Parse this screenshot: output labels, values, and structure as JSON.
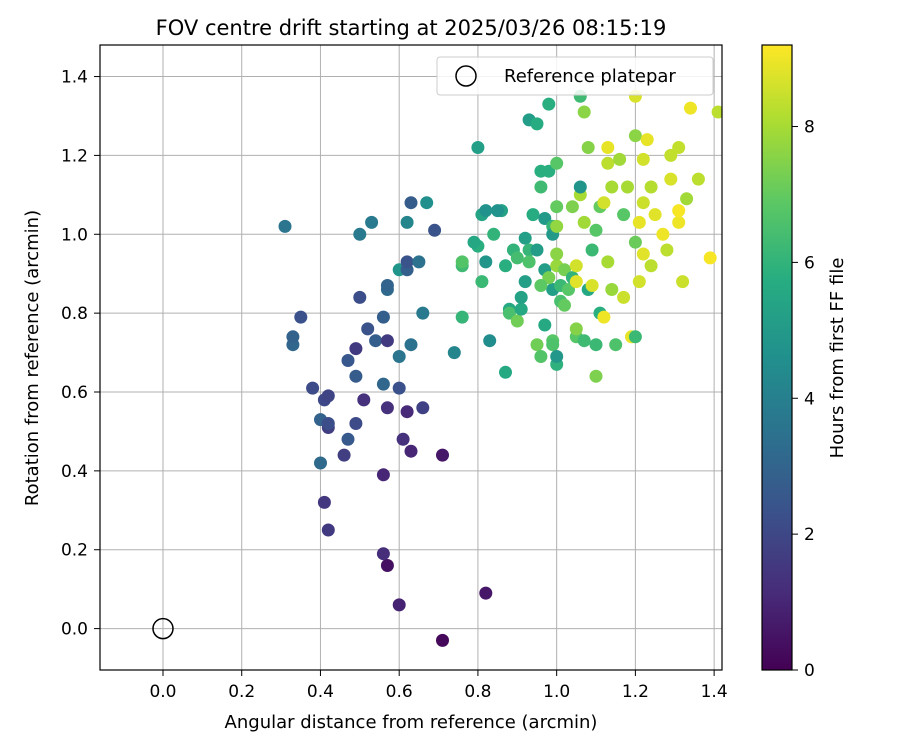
{
  "chart_data": {
    "type": "scatter",
    "title": "FOV centre drift starting at 2025/03/26 08:15:19",
    "xlabel": "Angular distance from reference (arcmin)",
    "ylabel": "Rotation from reference (arcmin)",
    "xlim": [
      -0.16,
      1.42
    ],
    "ylim": [
      -0.105,
      1.48
    ],
    "xticks": [
      0.0,
      0.2,
      0.4,
      0.6,
      0.8,
      1.0,
      1.2,
      1.4
    ],
    "xtick_labels": [
      "0.0",
      "0.2",
      "0.4",
      "0.6",
      "0.8",
      "1.0",
      "1.2",
      "1.4"
    ],
    "yticks": [
      0.0,
      0.2,
      0.4,
      0.6,
      0.8,
      1.0,
      1.2,
      1.4
    ],
    "ytick_labels": [
      "0.0",
      "0.2",
      "0.4",
      "0.6",
      "0.8",
      "1.0",
      "1.2",
      "1.4"
    ],
    "grid": true,
    "colormap": "viridis",
    "colorbar": {
      "label": "Hours from first FF file",
      "range": [
        0,
        9.2
      ],
      "ticks": [
        0,
        2,
        4,
        6,
        8
      ],
      "tick_labels": [
        "0",
        "2",
        "4",
        "6",
        "8"
      ]
    },
    "legend": {
      "position": "top-right",
      "entries": [
        {
          "label": "Reference platepar",
          "marker": "open-circle"
        }
      ]
    },
    "reference_point": {
      "x": 0.0,
      "y": 0.0
    },
    "points": [
      [
        0.71,
        -0.03,
        0.2
      ],
      [
        0.6,
        0.06,
        0.9
      ],
      [
        0.57,
        0.16,
        0.4
      ],
      [
        0.56,
        0.19,
        1.2
      ],
      [
        0.82,
        0.09,
        0.6
      ],
      [
        0.42,
        0.25,
        1.6
      ],
      [
        0.41,
        0.32,
        1.5
      ],
      [
        0.56,
        0.39,
        1.0
      ],
      [
        0.71,
        0.44,
        0.6
      ],
      [
        0.63,
        0.45,
        1.0
      ],
      [
        0.61,
        0.48,
        1.3
      ],
      [
        0.46,
        0.44,
        1.7
      ],
      [
        0.47,
        0.48,
        2.6
      ],
      [
        0.49,
        0.52,
        2.1
      ],
      [
        0.4,
        0.53,
        2.9
      ],
      [
        0.42,
        0.51,
        1.7
      ],
      [
        0.42,
        0.52,
        2.2
      ],
      [
        0.62,
        0.55,
        1.1
      ],
      [
        0.66,
        0.56,
        1.8
      ],
      [
        0.57,
        0.56,
        1.3
      ],
      [
        0.51,
        0.58,
        1.3
      ],
      [
        0.41,
        0.58,
        2.0
      ],
      [
        0.42,
        0.59,
        1.9
      ],
      [
        0.38,
        0.61,
        2.1
      ],
      [
        0.4,
        0.42,
        3.2
      ],
      [
        0.6,
        0.61,
        2.3
      ],
      [
        0.56,
        0.62,
        3.1
      ],
      [
        0.49,
        0.64,
        2.7
      ],
      [
        0.49,
        0.71,
        1.6
      ],
      [
        0.47,
        0.68,
        2.5
      ],
      [
        0.54,
        0.73,
        2.8
      ],
      [
        0.52,
        0.76,
        2.4
      ],
      [
        0.57,
        0.73,
        1.6
      ],
      [
        0.56,
        0.79,
        2.8
      ],
      [
        0.33,
        0.72,
        3.1
      ],
      [
        0.33,
        0.74,
        2.9
      ],
      [
        0.35,
        0.79,
        2.3
      ],
      [
        0.5,
        0.84,
        2.2
      ],
      [
        0.57,
        0.86,
        3.2
      ],
      [
        0.57,
        0.87,
        3.0
      ],
      [
        0.6,
        0.69,
        3.6
      ],
      [
        0.63,
        0.72,
        3.5
      ],
      [
        0.66,
        0.8,
        3.8
      ],
      [
        0.6,
        0.91,
        4.8
      ],
      [
        0.62,
        0.91,
        2.8
      ],
      [
        0.62,
        0.93,
        2.4
      ],
      [
        0.65,
        0.93,
        3.5
      ],
      [
        0.31,
        1.02,
        3.6
      ],
      [
        0.5,
        1.0,
        3.8
      ],
      [
        0.53,
        1.03,
        3.8
      ],
      [
        0.62,
        1.03,
        4.2
      ],
      [
        0.63,
        1.08,
        2.7
      ],
      [
        0.69,
        1.01,
        2.4
      ],
      [
        0.67,
        1.08,
        4.6
      ],
      [
        0.74,
        0.7,
        4.2
      ],
      [
        0.76,
        0.79,
        6.1
      ],
      [
        0.76,
        0.92,
        6.3
      ],
      [
        0.76,
        0.93,
        6.7
      ],
      [
        0.83,
        0.73,
        4.5
      ],
      [
        0.81,
        0.88,
        6.2
      ],
      [
        0.8,
        0.97,
        5.8
      ],
      [
        0.8,
        1.22,
        5.2
      ],
      [
        0.79,
        0.98,
        5.5
      ],
      [
        0.82,
        0.93,
        4.8
      ],
      [
        0.81,
        1.05,
        5.4
      ],
      [
        0.82,
        1.06,
        4.7
      ],
      [
        0.84,
        1.0,
        6.0
      ],
      [
        0.86,
        1.06,
        5.3
      ],
      [
        0.85,
        1.06,
        4.7
      ],
      [
        0.87,
        0.65,
        5.6
      ],
      [
        0.87,
        0.92,
        5.8
      ],
      [
        0.88,
        0.81,
        5.6
      ],
      [
        0.88,
        0.8,
        6.5
      ],
      [
        0.89,
        0.96,
        6.0
      ],
      [
        0.9,
        0.94,
        6.4
      ],
      [
        0.9,
        0.78,
        7.2
      ],
      [
        0.91,
        0.81,
        5.6
      ],
      [
        0.91,
        0.84,
        5.3
      ],
      [
        0.92,
        0.88,
        5.2
      ],
      [
        0.92,
        0.99,
        5.2
      ],
      [
        0.93,
        0.96,
        6.1
      ],
      [
        0.93,
        1.29,
        5.1
      ],
      [
        0.93,
        0.93,
        6.6
      ],
      [
        0.94,
        1.05,
        5.7
      ],
      [
        0.95,
        0.96,
        5.1
      ],
      [
        0.95,
        0.72,
        7.2
      ],
      [
        0.96,
        0.69,
        6.7
      ],
      [
        0.95,
        1.28,
        5.7
      ],
      [
        0.96,
        1.12,
        6.3
      ],
      [
        0.96,
        1.16,
        5.8
      ],
      [
        0.97,
        0.77,
        5.6
      ],
      [
        0.97,
        0.91,
        5.1
      ],
      [
        0.97,
        1.04,
        5.0
      ],
      [
        0.98,
        1.33,
        5.8
      ],
      [
        0.98,
        1.16,
        5.8
      ],
      [
        0.99,
        1.02,
        6.1
      ],
      [
        0.99,
        1.0,
        5.0
      ],
      [
        0.99,
        0.86,
        5.2
      ],
      [
        0.99,
        0.73,
        6.8
      ],
      [
        0.99,
        0.72,
        6.6
      ],
      [
        1.0,
        0.67,
        5.9
      ],
      [
        1.0,
        0.69,
        4.9
      ],
      [
        1.0,
        1.18,
        6.8
      ],
      [
        1.0,
        1.07,
        7.0
      ],
      [
        1.0,
        0.92,
        7.8
      ],
      [
        1.0,
        1.02,
        7.7
      ],
      [
        1.01,
        0.83,
        6.5
      ],
      [
        1.01,
        0.87,
        6.2
      ],
      [
        1.02,
        0.82,
        7.0
      ],
      [
        1.02,
        0.91,
        7.3
      ],
      [
        1.03,
        0.86,
        6.8
      ],
      [
        1.04,
        1.07,
        7.4
      ],
      [
        1.04,
        0.89,
        6.0
      ],
      [
        1.05,
        0.74,
        6.8
      ],
      [
        1.05,
        0.76,
        7.5
      ],
      [
        1.05,
        0.92,
        8.6
      ],
      [
        1.06,
        1.1,
        8.0
      ],
      [
        1.06,
        1.12,
        4.8
      ],
      [
        1.06,
        1.35,
        6.3
      ],
      [
        1.07,
        1.31,
        7.6
      ],
      [
        1.07,
        0.73,
        6.3
      ],
      [
        1.07,
        1.03,
        7.9
      ],
      [
        1.08,
        1.22,
        7.5
      ],
      [
        1.08,
        0.86,
        5.5
      ],
      [
        1.09,
        0.87,
        8.7
      ],
      [
        1.09,
        0.96,
        6.2
      ],
      [
        1.1,
        0.72,
        6.2
      ],
      [
        1.1,
        1.01,
        6.8
      ],
      [
        1.1,
        0.64,
        7.4
      ],
      [
        1.11,
        0.8,
        5.8
      ],
      [
        1.11,
        1.07,
        7.0
      ],
      [
        1.12,
        1.08,
        8.6
      ],
      [
        1.12,
        0.79,
        9.0
      ],
      [
        1.13,
        1.22,
        8.9
      ],
      [
        1.13,
        1.18,
        8.3
      ],
      [
        1.14,
        0.86,
        7.8
      ],
      [
        1.14,
        1.12,
        8.0
      ],
      [
        1.15,
        0.72,
        6.6
      ],
      [
        1.16,
        1.19,
        7.9
      ],
      [
        1.17,
        0.84,
        8.5
      ],
      [
        1.17,
        1.05,
        6.8
      ],
      [
        1.18,
        1.12,
        8.0
      ],
      [
        1.19,
        0.74,
        8.9
      ],
      [
        1.2,
        0.98,
        7.1
      ],
      [
        1.2,
        1.25,
        7.6
      ],
      [
        1.2,
        0.74,
        6.2
      ],
      [
        1.21,
        0.88,
        8.6
      ],
      [
        1.21,
        1.03,
        8.9
      ],
      [
        1.22,
        0.95,
        8.8
      ],
      [
        1.22,
        1.19,
        8.6
      ],
      [
        1.22,
        1.08,
        8.5
      ],
      [
        1.23,
        1.24,
        8.9
      ],
      [
        1.24,
        1.12,
        8.2
      ],
      [
        1.24,
        0.92,
        8.3
      ],
      [
        1.25,
        1.05,
        8.8
      ],
      [
        1.27,
        1.0,
        9.0
      ],
      [
        1.28,
        0.96,
        8.3
      ],
      [
        1.29,
        1.2,
        8.4
      ],
      [
        1.29,
        1.14,
        8.7
      ],
      [
        1.31,
        1.03,
        9.0
      ],
      [
        1.31,
        1.06,
        9.1
      ],
      [
        1.31,
        1.22,
        8.4
      ],
      [
        1.32,
        0.88,
        8.5
      ],
      [
        1.33,
        1.09,
        7.9
      ],
      [
        1.34,
        1.32,
        9.0
      ],
      [
        1.36,
        1.14,
        8.3
      ],
      [
        1.39,
        0.94,
        9.1
      ],
      [
        1.41,
        1.31,
        8.3
      ],
      [
        1.2,
        1.35,
        8.7
      ],
      [
        1.13,
        0.93,
        8.0
      ],
      [
        1.05,
        0.88,
        8.8
      ],
      [
        1.0,
        0.95,
        7.6
      ],
      [
        0.98,
        0.89,
        7.3
      ],
      [
        0.96,
        0.87,
        6.9
      ]
    ]
  }
}
